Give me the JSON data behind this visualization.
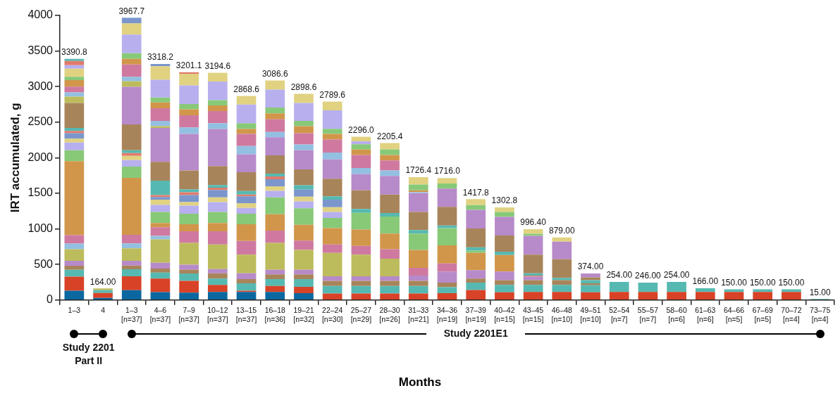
{
  "chart_data": {
    "type": "bar",
    "stacked": true,
    "xlabel": "Months",
    "ylabel": "IRT accumulated, g",
    "grid": false,
    "legend": false,
    "categories": [
      "1–3",
      "4",
      "1–3\n[n=37]",
      "4–6\n[n=37]",
      "7–9\n[n=37]",
      "10–12\n[n=37]",
      "13–15\n[n=37]",
      "16–18\n[n=36]",
      "19–21\n[n=32]",
      "22–24\n[n=30]",
      "25–27\n[n=29]",
      "28–30\n[n=26]",
      "31–33\n[n=21]",
      "34–36\n[n=19]",
      "37–39\n[n=19]",
      "40–42\n[n=15]",
      "43–45\n[n=15]",
      "46–48\n[n=10]",
      "49–51\n[n=10]",
      "52–54\n[n=7]",
      "55–57\n[n=7]",
      "58–60\n[n=6]",
      "61–63\n[n=6]",
      "64–66\n[n=5]",
      "67–69\n[n=5]",
      "70–72\n[n=4]",
      "73–75\n[n=4]"
    ],
    "ylim": [
      0,
      4000
    ],
    "yticks": [
      0,
      500,
      1000,
      1500,
      2000,
      2500,
      3000,
      3500,
      4000
    ],
    "totals": [
      "3390.8",
      "164.00",
      "3967.7",
      "3318.2",
      "3201.1",
      "3194.6",
      "2868.6",
      "3086.6",
      "2898.6",
      "2789.6",
      "2296.0",
      "2205.4",
      "1726.4",
      "1716.0",
      "1417.8",
      "1302.8",
      "996.40",
      "879.00",
      "374.00",
      "254.00",
      "246.00",
      "254.00",
      "166.00",
      "150.00",
      "150.00",
      "150.00",
      "15.00"
    ],
    "annotations": [
      "Study 2201\nPart II",
      "Study 2201E1"
    ],
    "series": [
      {
        "values": [
          131,
          30,
          138,
          111,
          105,
          115,
          115,
          115,
          98,
          92,
          92,
          92,
          92,
          98,
          141,
          108,
          115,
          115,
          108,
          115,
          115,
          115,
          115,
          115,
          115,
          115,
          15
        ],
        "colors": [
          "#0b679f",
          "#0b679f",
          "#0b679f",
          "#0b679f",
          "#0b679f",
          "#0b679f",
          "#0b679f",
          "#0b679f",
          "#0b679f",
          "#d84227",
          "#d84227",
          "#d84227",
          "#d84227",
          "#d84227",
          "#d84227",
          "#d84227",
          "#d84227",
          "#d84227",
          "#d84227",
          "#d84227",
          "#d84227",
          "#d84227",
          "#d84227",
          "#d84227",
          "#d84227",
          "#d84227",
          "#56b9b1"
        ]
      },
      {
        "values": [
          197,
          70,
          196,
          191,
          164,
          98,
          16,
          82,
          89,
          105,
          105,
          105,
          105,
          82,
          105,
          105,
          98,
          98,
          99,
          139,
          131,
          139,
          51,
          35,
          35,
          35,
          null
        ],
        "colors": [
          "#d84227",
          "#d84227",
          "#d84227",
          "#d84227",
          "#d84227",
          "#d84227",
          "#d84227",
          "#d84227",
          "#d84227",
          "#56b9b1",
          "#56b9b1",
          "#56b9b1",
          "#56b9b1",
          "#56b9b1",
          "#56b9b1",
          "#56b9b1",
          "#56b9b1",
          "#56b9b1",
          "#56b9b1",
          "#56b9b1",
          "#56b9b1",
          "#56b9b1",
          "#56b9b1",
          "#56b9b1",
          "#56b9b1",
          "#56b9b1",
          null
        ]
      },
      {
        "values": [
          98,
          40,
          99,
          85,
          105,
          89,
          105,
          98,
          108,
          72,
          72,
          72,
          72,
          66,
          56,
          66,
          66,
          66,
          29,
          null,
          null,
          null,
          null,
          null,
          null,
          null,
          null
        ],
        "colors": [
          "#56b9b1",
          "#56b9b1",
          "#56b9b1",
          "#56b9b1",
          "#56b9b1",
          "#56b9b1",
          "#56b9b1",
          "#56b9b1",
          "#56b9b1",
          "#a8845a",
          "#a8845a",
          "#a8845a",
          "#a8845a",
          "#a8845a",
          "#a8845a",
          "#a8845a",
          "#a8845a",
          "#a8845a",
          "#a8845a",
          null,
          null,
          null,
          null,
          null,
          null,
          null,
          null
        ]
      },
      {
        "values": [
          56,
          24,
          52,
          56,
          52,
          75,
          59,
          66,
          66,
          65,
          65,
          65,
          75,
          154,
          118,
          121,
          49,
          32,
          43,
          null,
          null,
          null,
          null,
          null,
          null,
          null,
          null
        ],
        "colors": [
          "#a8845a",
          "#bdbc5c",
          "#a8845a",
          "#a8845a",
          "#a8845a",
          "#a8845a",
          "#a8845a",
          "#a8845a",
          "#a8845a",
          "#b78ac9",
          "#b78ac9",
          "#b78ac9",
          "#b78ac9",
          "#b78ac9",
          "#b78ac9",
          "#b78ac9",
          "#b78ac9",
          "#56b9b1",
          "#56b9b1",
          null,
          null,
          null,
          null,
          null,
          null,
          null,
          null
        ]
      },
      {
        "values": [
          69,
          null,
          66,
          82,
          72,
          59,
          82,
          65,
          65,
          328,
          305,
          246,
          108,
          115,
          242,
          233,
          16,
          263,
          39,
          null,
          null,
          null,
          null,
          null,
          null,
          null,
          null
        ],
        "colors": [
          "#b78ac9",
          null,
          "#b78ac9",
          "#b78ac9",
          "#b78ac9",
          "#b78ac9",
          "#b78ac9",
          "#b78ac9",
          "#b78ac9",
          "#bdbc5c",
          "#bdbc5c",
          "#bdbc5c",
          "#cf79a0",
          "#cf79a0",
          "#d1964a",
          "#d1964a",
          "#e07b6c",
          "#a8845a",
          "#a8845a",
          null,
          null,
          null,
          null,
          null,
          null,
          null,
          null
        ]
      },
      {
        "values": [
          164,
          null,
          177,
          327,
          305,
          344,
          262,
          377,
          279,
          118,
          122,
          135,
          253,
          255,
          33,
          46,
          33,
          246,
          56,
          null,
          null,
          null,
          null,
          null,
          null,
          null,
          null
        ],
        "colors": [
          "#bdbc5c",
          null,
          "#bdbc5c",
          "#bdbc5c",
          "#bdbc5c",
          "#bdbc5c",
          "#bdbc5c",
          "#bdbc5c",
          "#bdbc5c",
          "#cf79a0",
          "#cf79a0",
          "#cf79a0",
          "#d1964a",
          "#d1964a",
          "#88c978",
          "#56b9b1",
          "#56b9b1",
          "#b78ac9",
          "#b78ac9",
          null,
          null,
          null,
          null,
          null,
          null,
          null,
          null
        ]
      },
      {
        "values": [
          78,
          null,
          69,
          50,
          164,
          187,
          191,
          174,
          131,
          230,
          229,
          219,
          229,
          240,
          46,
          229,
          262,
          59,
          null,
          null,
          null,
          null,
          null,
          null,
          null,
          null,
          null
        ],
        "colors": [
          "#93bfe1",
          null,
          "#93bfe1",
          "#93bfe1",
          "#cf79a0",
          "#cf79a0",
          "#cf79a0",
          "#cf79a0",
          "#cf79a0",
          "#d1964a",
          "#d1964a",
          "#d1964a",
          "#88c978",
          "#88c978",
          "#56b9b1",
          "#a8845a",
          "#a8845a",
          "#e0d281",
          null,
          null,
          null,
          null,
          null,
          null,
          null,
          null,
          null
        ]
      },
      {
        "values": [
          118,
          null,
          121,
          121,
          99,
          115,
          236,
          230,
          223,
          144,
          236,
          240,
          50,
          39,
          266,
          262,
          263,
          null,
          null,
          null,
          null,
          null,
          null,
          null,
          null,
          null,
          null
        ],
        "colors": [
          "#cf79a0",
          null,
          "#cf79a0",
          "#cf79a0",
          "#d1964a",
          "#d1964a",
          "#d1964a",
          "#d1964a",
          "#d1964a",
          "#88c978",
          "#88c978",
          "#88c978",
          "#56b9b1",
          "#56b9b1",
          "#a8845a",
          "#b78ac9",
          "#b78ac9",
          null,
          null,
          null,
          null,
          null,
          null,
          null,
          null,
          null,
          null
        ]
      },
      {
        "values": [
          1040,
          null,
          800,
          59,
          147,
          157,
          147,
          236,
          230,
          85,
          53,
          49,
          255,
          262,
          262,
          69,
          29,
          null,
          null,
          null,
          null,
          null,
          null,
          null,
          null,
          null,
          null
        ],
        "colors": [
          "#d1964a",
          null,
          "#d1964a",
          "#d1964a",
          "#88c978",
          "#88c978",
          "#88c978",
          "#88c978",
          "#88c978",
          "#b7afee",
          "#56b9b1",
          "#56b9b1",
          "#a8845a",
          "#a8845a",
          "#b78ac9",
          "#88c978",
          "#88c978",
          null,
          null,
          null,
          null,
          null,
          null,
          null,
          null,
          null,
          null
        ]
      },
      {
        "values": [
          154,
          null,
          157,
          157,
          115,
          138,
          82,
          91,
          98,
          66,
          262,
          259,
          263,
          256,
          65,
          63.8,
          65.4,
          null,
          null,
          null,
          null,
          null,
          null,
          null,
          null,
          null,
          null
        ],
        "colors": [
          "#88c978",
          null,
          "#88c978",
          "#88c978",
          "#b7afee",
          "#b7afee",
          "#b7afee",
          "#b7afee",
          "#b7afee",
          "#e0d281",
          "#a8845a",
          "#a8845a",
          "#b78ac9",
          "#b78ac9",
          "#88c978",
          "#e0d281",
          "#e0d281",
          null,
          null,
          null,
          null,
          null,
          null,
          null,
          null,
          null,
          null
        ]
      },
      {
        "values": [
          108,
          null,
          92,
          99,
          49,
          66,
          66,
          66,
          65,
          105,
          229,
          262,
          16,
          72,
          83.8,
          null,
          null,
          null,
          null,
          null,
          null,
          null,
          null,
          null,
          null,
          null,
          null
        ],
        "colors": [
          "#b7afee",
          null,
          "#b7afee",
          "#b7afee",
          "#e0d281",
          "#e0d281",
          "#e0d281",
          "#e0d281",
          "#e0d281",
          "#7b96cc",
          "#b78ac9",
          "#b78ac9",
          "#93bfe1",
          "#88c978",
          "#e0d281",
          null,
          null,
          null,
          null,
          null,
          null,
          null,
          null,
          null,
          null,
          null,
          null
        ]
      },
      {
        "values": [
          56,
          null,
          59,
          72,
          98,
          105,
          98,
          98,
          99,
          49,
          86,
          76,
          23,
          77,
          null,
          null,
          null,
          null,
          null,
          null,
          null,
          null,
          null,
          null,
          null,
          null,
          null
        ],
        "colors": [
          "#e0d281",
          null,
          "#e0d281",
          "#e0d281",
          "#7b96cc",
          "#7b96cc",
          "#7b96cc",
          "#7b96cc",
          "#7b96cc",
          "#56b9b1",
          "#93bfe1",
          "#93bfe1",
          "#d1964a",
          "#e0d281",
          null,
          null,
          null,
          null,
          null,
          null,
          null,
          null,
          null,
          null,
          null,
          null,
          null
        ]
      },
      {
        "values": [
          75,
          null,
          40,
          39,
          40,
          32,
          23,
          40,
          62,
          246,
          183,
          141,
          82,
          null,
          null,
          null,
          null,
          null,
          null,
          null,
          null,
          null,
          null,
          null,
          null,
          null,
          null
        ],
        "colors": [
          "#7b96cc",
          null,
          "#e07b6c",
          "#7b96cc",
          "#e07b6c",
          "#e07b6c",
          "#e07b6c",
          "#e07b6c",
          "#56b9b1",
          "#a8845a",
          "#cf79a0",
          "#cf79a0",
          "#88c978",
          null,
          null,
          null,
          null,
          null,
          null,
          null,
          null,
          null,
          null,
          null,
          null,
          null,
          null
        ]
      },
      {
        "values": [
          33,
          null,
          39,
          26,
          42,
          36,
          49,
          39,
          223,
          272,
          76,
          78,
          103.4,
          null,
          null,
          null,
          null,
          null,
          null,
          null,
          null,
          null,
          null,
          null,
          null,
          null,
          null
        ],
        "colors": [
          "#e07b6c",
          null,
          "#56b9b1",
          "#e07b6c",
          "#56b9b1",
          "#56b9b1",
          "#56b9b1",
          "#56b9b1",
          "#a8845a",
          "#b78ac9",
          "#d1964a",
          "#d1964a",
          "#e0d281",
          null,
          null,
          null,
          null,
          null,
          null,
          null,
          null,
          null,
          null,
          null,
          null,
          null,
          null
        ]
      },
      {
        "values": [
          43,
          null,
          364,
          204,
          263,
          266,
          266,
          256,
          269,
          95,
          75,
          79,
          null,
          null,
          null,
          null,
          null,
          null,
          null,
          null,
          null,
          null,
          null,
          null,
          null,
          null,
          null
        ],
        "colors": [
          "#56b9b1",
          null,
          "#a8845a",
          "#56b9b1",
          "#a8845a",
          "#a8845a",
          "#a8845a",
          "#a8845a",
          "#b78ac9",
          "#93bfe1",
          "#88c978",
          "#88c978",
          null,
          null,
          null,
          null,
          null,
          null,
          null,
          null,
          null,
          null,
          null,
          null,
          null,
          null,
          null
        ]
      },
      {
        "values": [
          350,
          null,
          528,
          262,
          514,
          521,
          252,
          256,
          82,
          184,
          40,
          87.4,
          null,
          null,
          null,
          null,
          null,
          null,
          null,
          null,
          null,
          null,
          null,
          null,
          null,
          null,
          null
        ],
        "colors": [
          "#a8845a",
          null,
          "#b78ac9",
          "#a8845a",
          "#b78ac9",
          "#b78ac9",
          "#b78ac9",
          "#b78ac9",
          "#93bfe1",
          "#cf79a0",
          "#b7afee",
          "#e0d281",
          null,
          null,
          null,
          null,
          null,
          null,
          null,
          null,
          null,
          null,
          null,
          null,
          null,
          null,
          null
        ]
      },
      {
        "values": [
          89,
          null,
          78,
          479,
          92,
          82,
          115,
          72,
          157,
          78,
          66,
          null,
          null,
          null,
          null,
          null,
          null,
          null,
          null,
          null,
          null,
          null,
          null,
          null,
          null,
          null,
          null
        ],
        "colors": [
          "#bdbc5c",
          null,
          "#bdbc5c",
          "#b78ac9",
          "#93bfe1",
          "#93bfe1",
          "#93bfe1",
          "#93bfe1",
          "#cf79a0",
          "#d1964a",
          "#e0d281",
          null,
          null,
          null,
          null,
          null,
          null,
          null,
          null,
          null,
          null,
          null,
          null,
          null,
          null,
          null,
          null
        ]
      },
      {
        "values": [
          59,
          null,
          63,
          23,
          171,
          171,
          170,
          180,
          99,
          73,
          null,
          null,
          null,
          null,
          null,
          null,
          null,
          null,
          null,
          null,
          null,
          null,
          null,
          null,
          null,
          null,
          null
        ],
        "colors": [
          "#93bfe1",
          null,
          "#93bfe1",
          "#bdbc5c",
          "#cf79a0",
          "#cf79a0",
          "#cf79a0",
          "#cf79a0",
          "#d1964a",
          "#88c978",
          null,
          null,
          null,
          null,
          null,
          null,
          null,
          null,
          null,
          null,
          null,
          null,
          null,
          null,
          null,
          null,
          null
        ]
      },
      {
        "values": [
          82,
          null,
          173,
          75,
          85,
          78,
          69,
          82,
          75,
          259,
          null,
          null,
          null,
          null,
          null,
          null,
          null,
          null,
          null,
          null,
          null,
          null,
          null,
          null,
          null,
          null,
          null
        ],
        "colors": [
          "#cf79a0",
          null,
          "#cf79a0",
          "#93bfe1",
          "#d1964a",
          "#d1964a",
          "#d1964a",
          "#d1964a",
          "#88c978",
          "#b7afee",
          null,
          null,
          null,
          null,
          null,
          null,
          null,
          null,
          null,
          null,
          null,
          null,
          null,
          null,
          null,
          null,
          null
        ]
      },
      {
        "values": [
          92,
          null,
          79,
          177,
          72,
          76,
          82,
          82,
          252,
          123.6,
          null,
          null,
          null,
          null,
          null,
          null,
          null,
          null,
          null,
          null,
          null,
          null,
          null,
          null,
          null,
          null,
          null
        ],
        "colors": [
          "#d1964a",
          null,
          "#d1964a",
          "#cf79a0",
          "#88c978",
          "#88c978",
          "#88c978",
          "#88c978",
          "#b7afee",
          "#e0d281",
          null,
          null,
          null,
          null,
          null,
          null,
          null,
          null,
          null,
          null,
          null,
          null,
          null,
          null,
          null,
          null,
          null
        ]
      },
      {
        "values": [
          46,
          null,
          79,
          82,
          262,
          262,
          263,
          252,
          128.6,
          null,
          null,
          null,
          null,
          null,
          null,
          null,
          null,
          null,
          null,
          null,
          null,
          null,
          null,
          null,
          null,
          null,
          null
        ],
        "colors": [
          "#88c978",
          null,
          "#88c978",
          "#d1964a",
          "#b7afee",
          "#b7afee",
          "#b7afee",
          "#b7afee",
          "#e0d281",
          null,
          null,
          null,
          null,
          null,
          null,
          null,
          null,
          null,
          null,
          null,
          null,
          null,
          null,
          null,
          null,
          null,
          null
        ]
      },
      {
        "values": [
          114,
          null,
          262,
          69,
          164,
          122.6,
          120.6,
          129.6,
          null,
          null,
          null,
          null,
          null,
          null,
          null,
          null,
          null,
          null,
          null,
          null,
          null,
          null,
          null,
          null,
          null,
          null,
          null
        ],
        "colors": [
          "#e0d281",
          null,
          "#b7afee",
          "#88c978",
          "#e0d281",
          "#e0d281",
          "#e0d281",
          "#e0d281",
          null,
          null,
          null,
          null,
          null,
          null,
          null,
          null,
          null,
          null,
          null,
          null,
          null,
          null,
          null,
          null,
          null,
          null,
          null
        ]
      },
      {
        "values": [
          50,
          null,
          158,
          249,
          21.1,
          null,
          null,
          null,
          null,
          null,
          null,
          null,
          null,
          null,
          null,
          null,
          null,
          null,
          null,
          null,
          null,
          null,
          null,
          null,
          null,
          null,
          null
        ],
        "colors": [
          "#b7afee",
          null,
          "#e0d281",
          "#b7afee",
          "#e07b6c",
          null,
          null,
          null,
          null,
          null,
          null,
          null,
          null,
          null,
          null,
          null,
          null,
          null,
          null,
          null,
          null,
          null,
          null,
          null,
          null,
          null,
          null
        ]
      },
      {
        "values": [
          59,
          null,
          78.7,
          190,
          null,
          null,
          null,
          null,
          null,
          null,
          null,
          null,
          null,
          null,
          null,
          null,
          null,
          null,
          null,
          null,
          null,
          null,
          null,
          null,
          null,
          null,
          null
        ],
        "colors": [
          "#e07b6c",
          null,
          "#7b96cc",
          "#e0d281",
          null,
          null,
          null,
          null,
          null,
          null,
          null,
          null,
          null,
          null,
          null,
          null,
          null,
          null,
          null,
          null,
          null,
          null,
          null,
          null,
          null,
          null,
          null
        ]
      },
      {
        "values": [
          29.8,
          null,
          null,
          33.2,
          null,
          null,
          null,
          null,
          null,
          null,
          null,
          null,
          null,
          null,
          null,
          null,
          null,
          null,
          null,
          null,
          null,
          null,
          null,
          null,
          null,
          null,
          null
        ],
        "colors": [
          "#56b9b1",
          null,
          null,
          "#7b96cc",
          null,
          null,
          null,
          null,
          null,
          null,
          null,
          null,
          null,
          null,
          null,
          null,
          null,
          null,
          null,
          null,
          null,
          null,
          null,
          null,
          null,
          null,
          null
        ]
      }
    ]
  }
}
